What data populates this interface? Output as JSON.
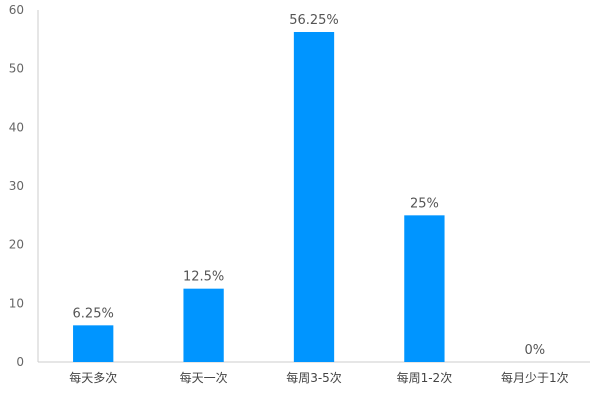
{
  "chart_data": {
    "type": "bar",
    "categories": [
      "每天多次",
      "每天一次",
      "每周3-5次",
      "每周1-2次",
      "每月少于1次"
    ],
    "values": [
      6.25,
      12.5,
      56.25,
      25,
      0
    ],
    "data_labels": [
      "6.25%",
      "12.5%",
      "56.25%",
      "25%",
      "0%"
    ],
    "ylim": [
      0,
      60
    ],
    "yticks": [
      0,
      10,
      20,
      30,
      40,
      50,
      60
    ],
    "grid": false,
    "bar_color": "#0095FF",
    "axis_color": "#CCCCCC",
    "title": "",
    "xlabel": "",
    "ylabel": ""
  }
}
